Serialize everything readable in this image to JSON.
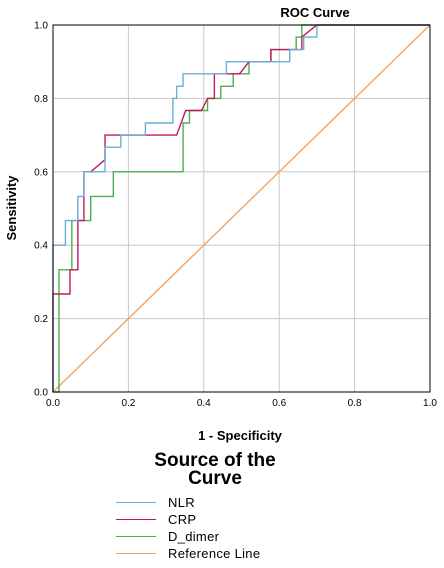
{
  "chart_data": {
    "type": "line",
    "title": "ROC Curve",
    "xlabel": "1 - Specificity",
    "ylabel": "Sensitivity",
    "xlim": [
      0,
      1
    ],
    "ylim": [
      0,
      1
    ],
    "x_ticks": [
      "0.0",
      "0.2",
      "0.4",
      "0.6",
      "0.8",
      "1.0"
    ],
    "y_ticks": [
      "0.0",
      "0.2",
      "0.4",
      "0.6",
      "0.8",
      "1.0"
    ],
    "grid": true,
    "legend_title": "Source of the Curve",
    "series": [
      {
        "name": "NLR",
        "color": "#6baed6",
        "points": [
          [
            0,
            0
          ],
          [
            0,
            0.4
          ],
          [
            0.033,
            0.4
          ],
          [
            0.033,
            0.467
          ],
          [
            0.066,
            0.467
          ],
          [
            0.066,
            0.533
          ],
          [
            0.082,
            0.533
          ],
          [
            0.082,
            0.6
          ],
          [
            0.138,
            0.6
          ],
          [
            0.138,
            0.667
          ],
          [
            0.18,
            0.667
          ],
          [
            0.18,
            0.7
          ],
          [
            0.245,
            0.7
          ],
          [
            0.245,
            0.733
          ],
          [
            0.318,
            0.733
          ],
          [
            0.318,
            0.8
          ],
          [
            0.328,
            0.8
          ],
          [
            0.328,
            0.833
          ],
          [
            0.345,
            0.833
          ],
          [
            0.345,
            0.867
          ],
          [
            0.46,
            0.867
          ],
          [
            0.46,
            0.9
          ],
          [
            0.628,
            0.9
          ],
          [
            0.628,
            0.933
          ],
          [
            0.665,
            0.933
          ],
          [
            0.665,
            0.967
          ],
          [
            0.7,
            0.967
          ],
          [
            0.7,
            1
          ],
          [
            1,
            1
          ]
        ]
      },
      {
        "name": "CRP",
        "color": "#c2185b",
        "points": [
          [
            0,
            0
          ],
          [
            0,
            0.267
          ],
          [
            0.045,
            0.267
          ],
          [
            0.045,
            0.333
          ],
          [
            0.066,
            0.333
          ],
          [
            0.066,
            0.467
          ],
          [
            0.082,
            0.467
          ],
          [
            0.082,
            0.6
          ],
          [
            0.1,
            0.6
          ],
          [
            0.138,
            0.633
          ],
          [
            0.138,
            0.7
          ],
          [
            0.328,
            0.7
          ],
          [
            0.352,
            0.767
          ],
          [
            0.394,
            0.767
          ],
          [
            0.41,
            0.8
          ],
          [
            0.428,
            0.8
          ],
          [
            0.428,
            0.867
          ],
          [
            0.495,
            0.867
          ],
          [
            0.52,
            0.9
          ],
          [
            0.578,
            0.9
          ],
          [
            0.578,
            0.933
          ],
          [
            0.66,
            0.933
          ],
          [
            0.66,
            0.967
          ],
          [
            0.7,
            1
          ],
          [
            1,
            1
          ]
        ]
      },
      {
        "name": "D_dimer",
        "color": "#4caf50",
        "points": [
          [
            0,
            0
          ],
          [
            0.016,
            0
          ],
          [
            0.016,
            0.333
          ],
          [
            0.05,
            0.333
          ],
          [
            0.05,
            0.467
          ],
          [
            0.1,
            0.467
          ],
          [
            0.1,
            0.533
          ],
          [
            0.16,
            0.533
          ],
          [
            0.16,
            0.6
          ],
          [
            0.345,
            0.6
          ],
          [
            0.345,
            0.733
          ],
          [
            0.362,
            0.733
          ],
          [
            0.362,
            0.767
          ],
          [
            0.41,
            0.767
          ],
          [
            0.41,
            0.8
          ],
          [
            0.445,
            0.8
          ],
          [
            0.445,
            0.833
          ],
          [
            0.478,
            0.833
          ],
          [
            0.478,
            0.867
          ],
          [
            0.52,
            0.867
          ],
          [
            0.52,
            0.9
          ],
          [
            0.578,
            0.9
          ],
          [
            0.578,
            0.933
          ],
          [
            0.645,
            0.933
          ],
          [
            0.645,
            0.967
          ],
          [
            0.66,
            0.967
          ],
          [
            0.66,
            1
          ],
          [
            1,
            1
          ]
        ]
      },
      {
        "name": "Reference Line",
        "color": "#f4a460",
        "points": [
          [
            0,
            0
          ],
          [
            1,
            1
          ]
        ]
      }
    ]
  }
}
